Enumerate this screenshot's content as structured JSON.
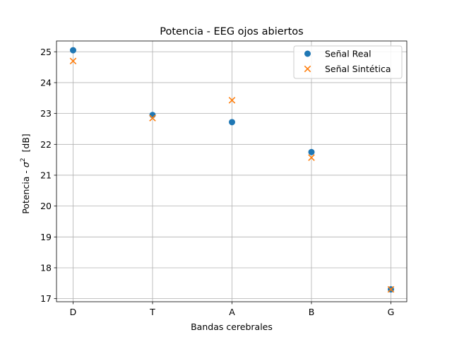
{
  "chart_data": {
    "type": "scatter",
    "title": "Potencia - EEG ojos abiertos",
    "xlabel": "Bandas cerebrales",
    "ylabel": {
      "prefix": "Potencia - ",
      "symbol": "σ",
      "superscript": "2",
      "suffix": "  [dB]"
    },
    "categories": [
      "D",
      "T",
      "A",
      "B",
      "G"
    ],
    "y_ticks": [
      17,
      18,
      19,
      20,
      21,
      22,
      23,
      24,
      25
    ],
    "ylim": [
      16.9,
      25.35
    ],
    "grid": true,
    "legend_position": "top-right",
    "series": [
      {
        "name": "Señal Real",
        "marker": "circle",
        "color": "#1f77b4",
        "values": [
          25.05,
          22.95,
          22.72,
          21.75,
          17.3
        ]
      },
      {
        "name": "Señal Sintética",
        "marker": "x",
        "color": "#ff7f0e",
        "values": [
          24.7,
          22.85,
          23.43,
          21.57,
          17.3
        ]
      }
    ]
  }
}
